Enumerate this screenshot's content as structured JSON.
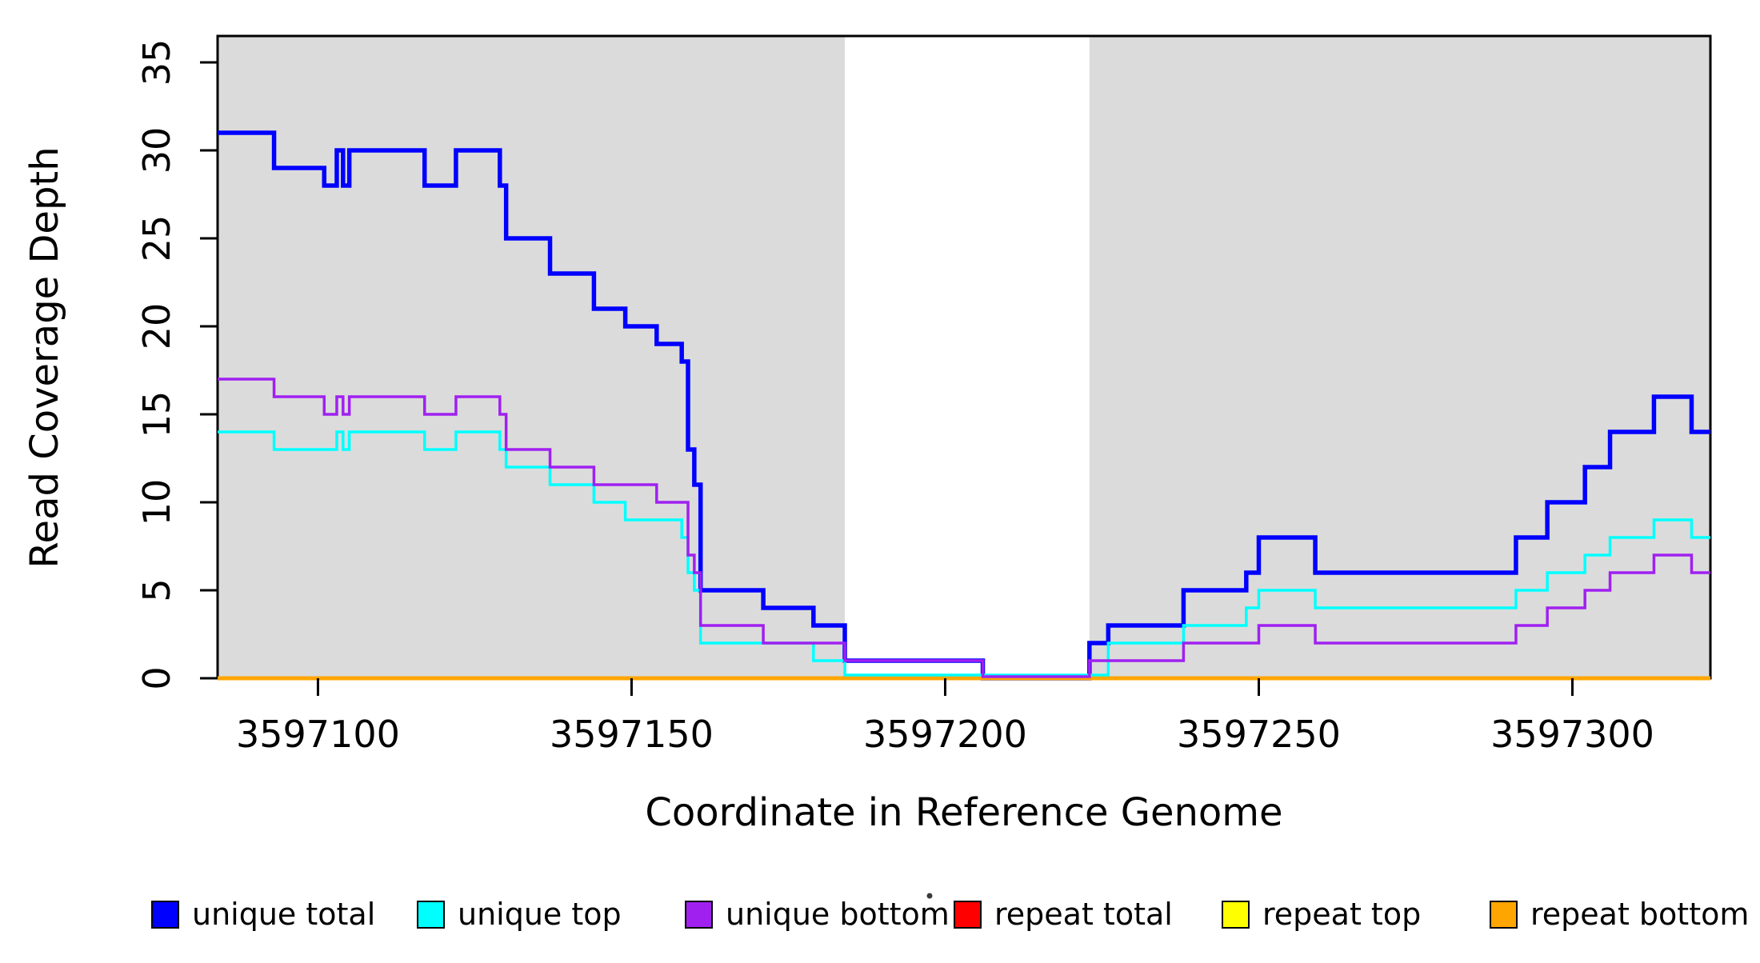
{
  "chart_data": {
    "type": "line",
    "step": true,
    "title": "",
    "xlabel": "Coordinate in Reference Genome",
    "ylabel": "Read Coverage Depth",
    "xlim": [
      3597084,
      3597322
    ],
    "ylim": [
      0,
      36.5
    ],
    "x_ticks": [
      3597100,
      3597150,
      3597200,
      3597250,
      3597300
    ],
    "y_ticks": [
      0,
      5,
      10,
      15,
      20,
      25,
      30,
      35
    ],
    "grid": false,
    "legend_position": "bottom",
    "panel_color": "#DBDBDB",
    "shaded_x_ranges": [
      [
        3597084,
        3597184
      ],
      [
        3597223,
        3597322
      ]
    ],
    "series": [
      {
        "name": "unique total",
        "color": "#0000FF",
        "points": [
          [
            3597084,
            31
          ],
          [
            3597093,
            29
          ],
          [
            3597101,
            28
          ],
          [
            3597103,
            30
          ],
          [
            3597104,
            28
          ],
          [
            3597105,
            30
          ],
          [
            3597117,
            28
          ],
          [
            3597122,
            30
          ],
          [
            3597129,
            28
          ],
          [
            3597130,
            25
          ],
          [
            3597137,
            23
          ],
          [
            3597144,
            21
          ],
          [
            3597149,
            20
          ],
          [
            3597154,
            19
          ],
          [
            3597158,
            18
          ],
          [
            3597159,
            13
          ],
          [
            3597160,
            11
          ],
          [
            3597161,
            5
          ],
          [
            3597171,
            4
          ],
          [
            3597179,
            3
          ],
          [
            3597184,
            1
          ],
          [
            3597206,
            0
          ],
          [
            3597223,
            2
          ],
          [
            3597226,
            3
          ],
          [
            3597238,
            5
          ],
          [
            3597248,
            6
          ],
          [
            3597250,
            8
          ],
          [
            3597259,
            6
          ],
          [
            3597291,
            8
          ],
          [
            3597296,
            10
          ],
          [
            3597302,
            12
          ],
          [
            3597306,
            14
          ],
          [
            3597313,
            16
          ],
          [
            3597319,
            14
          ],
          [
            3597322,
            14
          ]
        ]
      },
      {
        "name": "unique top",
        "color": "#00FFFF",
        "points": [
          [
            3597084,
            14
          ],
          [
            3597093,
            13
          ],
          [
            3597103,
            14
          ],
          [
            3597104,
            13
          ],
          [
            3597105,
            14
          ],
          [
            3597117,
            13
          ],
          [
            3597122,
            14
          ],
          [
            3597129,
            13
          ],
          [
            3597130,
            12
          ],
          [
            3597137,
            11
          ],
          [
            3597144,
            10
          ],
          [
            3597149,
            9
          ],
          [
            3597158,
            8
          ],
          [
            3597159,
            6
          ],
          [
            3597160,
            5
          ],
          [
            3597161,
            2
          ],
          [
            3597179,
            1
          ],
          [
            3597184,
            0
          ],
          [
            3597226,
            2
          ],
          [
            3597238,
            3
          ],
          [
            3597248,
            4
          ],
          [
            3597250,
            5
          ],
          [
            3597259,
            4
          ],
          [
            3597291,
            5
          ],
          [
            3597296,
            6
          ],
          [
            3597302,
            7
          ],
          [
            3597306,
            8
          ],
          [
            3597313,
            9
          ],
          [
            3597319,
            8
          ],
          [
            3597322,
            8
          ]
        ]
      },
      {
        "name": "unique bottom",
        "color": "#A020F0",
        "points": [
          [
            3597084,
            17
          ],
          [
            3597093,
            16
          ],
          [
            3597101,
            15
          ],
          [
            3597103,
            16
          ],
          [
            3597104,
            15
          ],
          [
            3597105,
            16
          ],
          [
            3597117,
            15
          ],
          [
            3597122,
            16
          ],
          [
            3597129,
            15
          ],
          [
            3597130,
            13
          ],
          [
            3597137,
            12
          ],
          [
            3597144,
            11
          ],
          [
            3597154,
            10
          ],
          [
            3597159,
            7
          ],
          [
            3597160,
            6
          ],
          [
            3597161,
            3
          ],
          [
            3597171,
            2
          ],
          [
            3597184,
            1
          ],
          [
            3597206,
            0
          ],
          [
            3597223,
            1
          ],
          [
            3597238,
            2
          ],
          [
            3597250,
            3
          ],
          [
            3597259,
            2
          ],
          [
            3597291,
            3
          ],
          [
            3597296,
            4
          ],
          [
            3597302,
            5
          ],
          [
            3597306,
            6
          ],
          [
            3597313,
            7
          ],
          [
            3597319,
            6
          ],
          [
            3597322,
            6
          ]
        ]
      },
      {
        "name": "repeat total",
        "color": "#FF0000",
        "points": [
          [
            3597084,
            0
          ],
          [
            3597322,
            0
          ]
        ]
      },
      {
        "name": "repeat top",
        "color": "#FFFF00",
        "points": [
          [
            3597084,
            0
          ],
          [
            3597322,
            0
          ]
        ]
      },
      {
        "name": "repeat bottom",
        "color": "#FFA500",
        "points": [
          [
            3597084,
            0
          ],
          [
            3597322,
            0
          ]
        ]
      }
    ],
    "legend": [
      {
        "label": "unique total",
        "color": "#0000FF"
      },
      {
        "label": "unique top",
        "color": "#00FFFF"
      },
      {
        "label": "unique bottom",
        "color": "#A020F0"
      },
      {
        "label": "repeat total",
        "color": "#FF0000"
      },
      {
        "label": "repeat top",
        "color": "#FFFF00"
      },
      {
        "label": "repeat bottom",
        "color": "#FFA500"
      }
    ]
  }
}
